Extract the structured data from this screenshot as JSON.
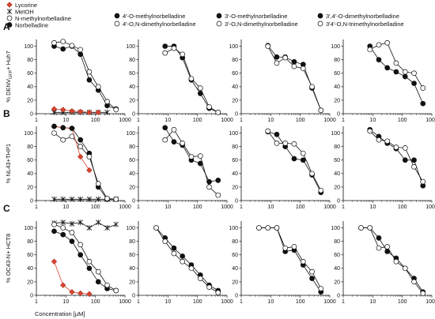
{
  "rows": [
    {
      "label": "A",
      "ylabel": "% DENV₂ɢᶠᴾ Huh7"
    },
    {
      "label": "B",
      "ylabel": "% NL43+THP1"
    },
    {
      "label": "C",
      "ylabel": "% OC43-N+ HCT8"
    }
  ],
  "row_ylabels_plain": [
    "% DENV",
    "% NL43+THP1",
    "% OC43-N+ HCT8"
  ],
  "row_ylabel_sub": "GFP",
  "row_ylabel_suffix": "+ Huh7",
  "xlabel": "Concentration [μM]",
  "legend": {
    "col1": [
      {
        "name": "Lycorine",
        "marker": "diamond-red"
      },
      {
        "name": "MetOH",
        "marker": "star"
      },
      {
        "name": "N-methylnorbelladine",
        "marker": "open-circle"
      },
      {
        "name": "Norbelladine",
        "marker": "filled-circle"
      }
    ],
    "col2": [
      {
        "name": "4′-O-methylnorbelladine",
        "marker": "filled-circle"
      },
      {
        "name": "4′-O,N-dimethylnorbelladine",
        "marker": "open-circle"
      }
    ],
    "col3": [
      {
        "name": "3′-O-methylnorbelladine",
        "marker": "filled-circle"
      },
      {
        "name": "3′-O,N-dimethylnorbelladine",
        "marker": "open-circle"
      }
    ],
    "col4": [
      {
        "name": "3′,4′-O-dimethylnorbelladine",
        "marker": "filled-circle"
      },
      {
        "name": "3′4′-O,N-trimethylnorbelladine",
        "marker": "open-circle"
      }
    ]
  },
  "colors": {
    "lycorine": "#d9432f",
    "filled": "#111111",
    "open": "#ffffff"
  },
  "chart_data": {
    "type": "scatter",
    "xscale": "log",
    "xlim": [
      1,
      1000
    ],
    "ylim": [
      0,
      110
    ],
    "xticks": [
      1,
      10,
      100,
      1000
    ],
    "yticks": [
      0,
      20,
      40,
      60,
      80,
      100
    ],
    "panels": [
      {
        "row": "A",
        "col": 1,
        "series": [
          {
            "name": "Norbelladine",
            "marker": "filled",
            "x": [
              4,
              8,
              16,
              31,
              62,
              125,
              250,
              500
            ],
            "y": [
              100,
              96,
              100,
              88,
              50,
              35,
              12,
              7
            ]
          },
          {
            "name": "N-methylnorbelladine",
            "marker": "open",
            "x": [
              4,
              8,
              16,
              31,
              62,
              125,
              250,
              500
            ],
            "y": [
              105,
              107,
              101,
              95,
              62,
              40,
              18,
              6
            ]
          },
          {
            "name": "Lycorine",
            "marker": "diamond",
            "x": [
              4,
              8,
              16,
              31,
              62,
              125
            ],
            "y": [
              7,
              6,
              4,
              3,
              2,
              2
            ]
          },
          {
            "name": "MetOH",
            "marker": "star",
            "x": [
              4,
              8,
              16,
              31,
              62,
              125,
              250
            ],
            "y": [
              2,
              2,
              2,
              2,
              2,
              2,
              2
            ]
          }
        ]
      },
      {
        "row": "A",
        "col": 2,
        "series": [
          {
            "name": "4′-O-methylnorbelladine",
            "marker": "filled",
            "x": [
              8,
              16,
              31,
              62,
              125,
              250,
              500
            ],
            "y": [
              100,
              100,
              83,
              50,
              30,
              8,
              2
            ]
          },
          {
            "name": "4′-O,N-dimethylnorbelladine",
            "marker": "open",
            "x": [
              8,
              16,
              31,
              62,
              125,
              250,
              500
            ],
            "y": [
              90,
              97,
              88,
              52,
              38,
              10,
              2
            ]
          }
        ]
      },
      {
        "row": "A",
        "col": 3,
        "series": [
          {
            "name": "3′-O-methylnorbelladine",
            "marker": "filled",
            "x": [
              8,
              16,
              31,
              62,
              125,
              250,
              500
            ],
            "y": [
              101,
              84,
              84,
              77,
              73,
              38,
              5
            ]
          },
          {
            "name": "3′-O,N-dimethylnorbelladine",
            "marker": "open",
            "x": [
              8,
              16,
              31,
              62,
              125,
              250,
              500
            ],
            "y": [
              100,
              75,
              83,
              70,
              67,
              40,
              5
            ]
          }
        ]
      },
      {
        "row": "A",
        "col": 4,
        "series": [
          {
            "name": "3′,4′-O-dimethylnorbelladine",
            "marker": "filled",
            "x": [
              8,
              16,
              31,
              62,
              125,
              250,
              500
            ],
            "y": [
              100,
              80,
              68,
              62,
              55,
              45,
              15
            ]
          },
          {
            "name": "3′4′-O,N-trimethylnorbelladine",
            "marker": "open",
            "x": [
              8,
              16,
              31,
              62,
              125,
              250,
              500
            ],
            "y": [
              95,
              102,
              105,
              75,
              62,
              60,
              38
            ]
          }
        ]
      },
      {
        "row": "B",
        "col": 1,
        "series": [
          {
            "name": "Norbelladine",
            "marker": "filled",
            "x": [
              4,
              8,
              16,
              31,
              62,
              125,
              250,
              500
            ],
            "y": [
              110,
              108,
              107,
              90,
              70,
              20,
              2,
              2
            ]
          },
          {
            "name": "N-methylnorbelladine",
            "marker": "open",
            "x": [
              4,
              8,
              16,
              31,
              62,
              125,
              250,
              500
            ],
            "y": [
              100,
              90,
              95,
              80,
              65,
              25,
              3,
              2
            ]
          },
          {
            "name": "Lycorine",
            "marker": "diamond",
            "x": [
              4,
              8,
              16,
              31,
              62
            ],
            "y": [
              110,
              108,
              107,
              65,
              45
            ]
          },
          {
            "name": "MetOH",
            "marker": "star",
            "x": [
              4,
              8,
              16,
              31,
              62,
              125,
              250,
              500
            ],
            "y": [
              2,
              2,
              2,
              2,
              2,
              2,
              2,
              2
            ]
          }
        ]
      },
      {
        "row": "B",
        "col": 2,
        "series": [
          {
            "name": "4′-O-methylnorbelladine",
            "marker": "filled",
            "x": [
              8,
              16,
              31,
              62,
              125,
              250,
              500
            ],
            "y": [
              108,
              87,
              82,
              60,
              55,
              28,
              30
            ]
          },
          {
            "name": "4′-O,N-dimethylnorbelladine",
            "marker": "open",
            "x": [
              8,
              16,
              31,
              62,
              125,
              250,
              500
            ],
            "y": [
              90,
              105,
              85,
              65,
              66,
              20,
              8
            ]
          }
        ]
      },
      {
        "row": "B",
        "col": 3,
        "series": [
          {
            "name": "3′-O-methylnorbelladine",
            "marker": "filled",
            "x": [
              8,
              16,
              31,
              62,
              125,
              250,
              500
            ],
            "y": [
              102,
              98,
              80,
              62,
              60,
              38,
              12
            ]
          },
          {
            "name": "3′-O,N-dimethylnorbelladine",
            "marker": "open",
            "x": [
              8,
              16,
              31,
              62,
              125,
              250,
              500
            ],
            "y": [
              103,
              85,
              85,
              84,
              70,
              40,
              15
            ]
          }
        ]
      },
      {
        "row": "B",
        "col": 4,
        "series": [
          {
            "name": "3′,4′-O-dimethylnorbelladine",
            "marker": "filled",
            "x": [
              8,
              16,
              31,
              62,
              125,
              250,
              500
            ],
            "y": [
              105,
              95,
              85,
              77,
              60,
              60,
              22
            ]
          },
          {
            "name": "3′4′-O,N-trimethylnorbelladine",
            "marker": "open",
            "x": [
              8,
              16,
              31,
              62,
              125,
              250,
              500
            ],
            "y": [
              103,
              90,
              88,
              79,
              78,
              50,
              28
            ]
          }
        ]
      },
      {
        "row": "C",
        "col": 1,
        "series": [
          {
            "name": "Norbelladine",
            "marker": "filled",
            "x": [
              4,
              8,
              16,
              31,
              62,
              125,
              250,
              500
            ],
            "y": [
              95,
              90,
              80,
              60,
              40,
              20,
              10,
              7
            ]
          },
          {
            "name": "N-methylnorbelladine",
            "marker": "open",
            "x": [
              4,
              8,
              16,
              31,
              62,
              125,
              250,
              500
            ],
            "y": [
              105,
              100,
              93,
              75,
              50,
              35,
              15,
              7
            ]
          },
          {
            "name": "Lycorine",
            "marker": "diamond",
            "x": [
              4,
              8,
              16,
              31,
              62
            ],
            "y": [
              50,
              15,
              5,
              3,
              2
            ]
          },
          {
            "name": "MetOH",
            "marker": "star",
            "x": [
              4,
              8,
              16,
              31,
              62,
              125,
              250,
              500
            ],
            "y": [
              107,
              108,
              106,
              108,
              100,
              108,
              100,
              105
            ]
          }
        ]
      },
      {
        "row": "C",
        "col": 2,
        "series": [
          {
            "name": "4′-O-methylnorbelladine",
            "marker": "filled",
            "x": [
              4,
              8,
              16,
              31,
              62,
              125,
              250,
              500
            ],
            "y": [
              100,
              85,
              70,
              58,
              45,
              30,
              15,
              7
            ]
          },
          {
            "name": "4′-O,N-dimethylnorbelladine",
            "marker": "open",
            "x": [
              4,
              8,
              16,
              31,
              62,
              125,
              250,
              500
            ],
            "y": [
              100,
              80,
              62,
              50,
              40,
              25,
              12,
              4
            ]
          }
        ]
      },
      {
        "row": "C",
        "col": 3,
        "series": [
          {
            "name": "3′-O-methylnorbelladine",
            "marker": "filled",
            "x": [
              4,
              8,
              16,
              31,
              62,
              125,
              250,
              500
            ],
            "y": [
              100,
              100,
              100,
              65,
              67,
              45,
              25,
              5
            ]
          },
          {
            "name": "3′-O,N-dimethylnorbelladine",
            "marker": "open",
            "x": [
              4,
              8,
              16,
              31,
              62,
              125,
              250,
              500
            ],
            "y": [
              100,
              100,
              100,
              70,
              72,
              50,
              35,
              10
            ]
          }
        ]
      },
      {
        "row": "C",
        "col": 4,
        "series": [
          {
            "name": "3′,4′-O-dimethylnorbelladine",
            "marker": "filled",
            "x": [
              4,
              8,
              16,
              31,
              62,
              125,
              250,
              500
            ],
            "y": [
              100,
              100,
              85,
              65,
              55,
              40,
              25,
              5
            ]
          },
          {
            "name": "3′4′-O,N-trimethylnorbelladine",
            "marker": "open",
            "x": [
              4,
              8,
              16,
              31,
              62,
              125,
              250,
              500
            ],
            "y": [
              100,
              100,
              70,
              72,
              50,
              40,
              20,
              3
            ]
          }
        ]
      }
    ]
  }
}
